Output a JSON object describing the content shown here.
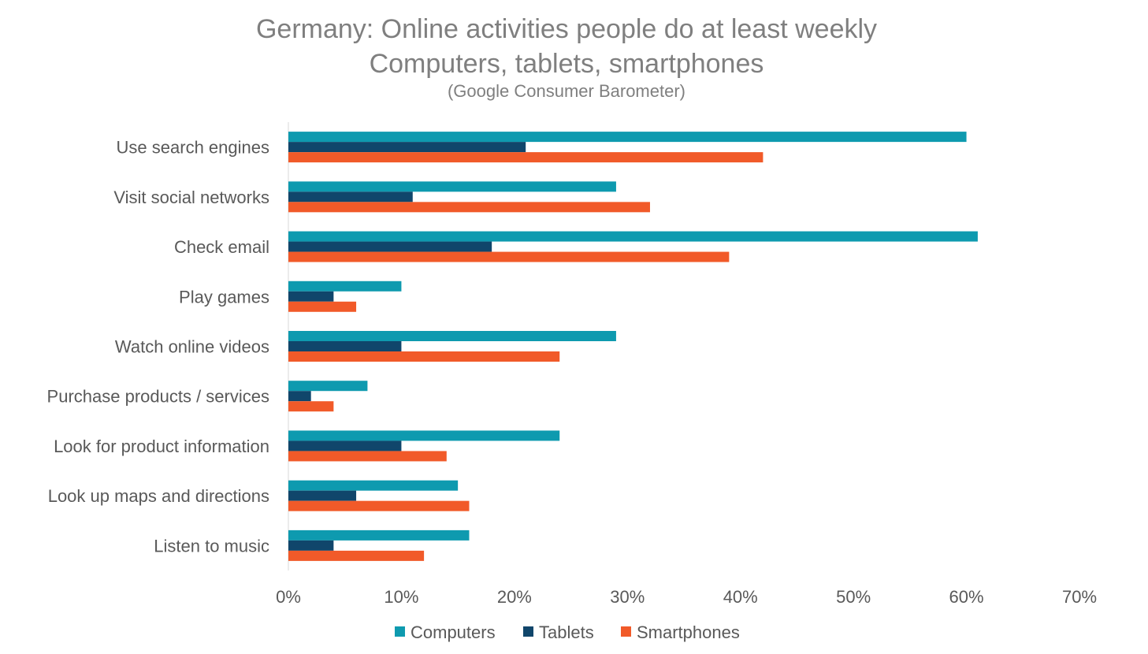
{
  "chart_data": {
    "type": "bar",
    "orientation": "horizontal",
    "title": "Germany: Online activities people do at least weekly",
    "subtitle": "Computers, tablets, smartphones",
    "source_note": "(Google Consumer Barometer)",
    "categories": [
      "Use search engines",
      "Visit social networks",
      "Check email",
      "Play games",
      "Watch online videos",
      "Purchase products / services",
      "Look for product information",
      "Look up maps and directions",
      "Listen to music"
    ],
    "series": [
      {
        "name": "Computers",
        "color": "#0e9aaf",
        "values": [
          60,
          29,
          61,
          10,
          29,
          7,
          24,
          15,
          16
        ]
      },
      {
        "name": "Tablets",
        "color": "#10466b",
        "values": [
          21,
          11,
          18,
          4,
          10,
          2,
          10,
          6,
          4
        ]
      },
      {
        "name": "Smartphones",
        "color": "#f15a29",
        "values": [
          42,
          32,
          39,
          6,
          24,
          4,
          14,
          16,
          12
        ]
      }
    ],
    "xlim": [
      0,
      70
    ],
    "x_ticks": [
      "0%",
      "10%",
      "20%",
      "30%",
      "40%",
      "50%",
      "60%",
      "70%"
    ],
    "grid": false,
    "legend_position": "bottom"
  }
}
